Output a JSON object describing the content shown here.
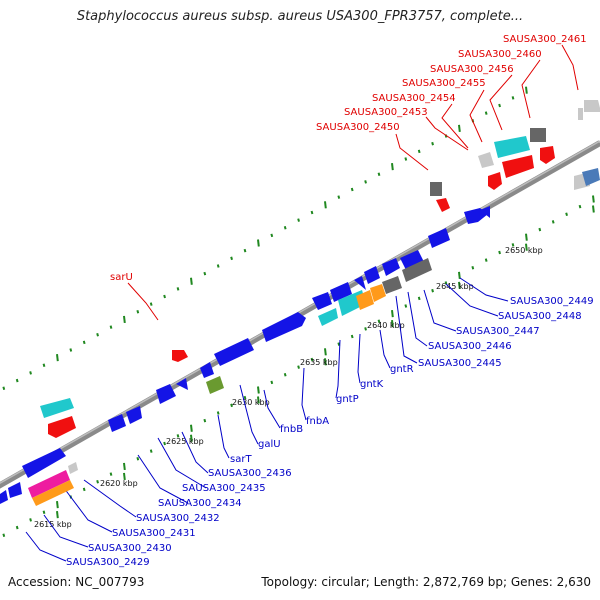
{
  "title": "Staphylococcus aureus subsp. aureus USA300_FPR3757, complete...",
  "footer": {
    "accession": "Accession: NC_007793",
    "summary": "Topology: circular; Length: 2,872,769 bp; Genes: 2,630"
  },
  "colors": {
    "backbone": "#8a8a8a",
    "blue_gene": "#1414e6",
    "red_gene": "#f01010",
    "cyan_gene": "#20c8cc",
    "gray_dark": "#666666",
    "gray_light": "#c8c8c8",
    "orange_gene": "#ff9a1a",
    "magenta_gene": "#ee1ca0",
    "olive_gene": "#6a9a30",
    "tick_green": "#208820",
    "red_label": "#e00000",
    "blue_label": "#0000c8"
  },
  "kbp_ticks": [
    "2615 kbp",
    "2620 kbp",
    "2625 kbp",
    "2630 kbp",
    "2635 kbp",
    "2640 kbp",
    "2645 kbp",
    "2650 kbp"
  ],
  "labels_red": [
    "SAUSA300_2461",
    "SAUSA300_2460",
    "SAUSA300_2456",
    "SAUSA300_2455",
    "SAUSA300_2454",
    "SAUSA300_2453",
    "SAUSA300_2450",
    "sarU"
  ],
  "labels_blue": [
    "SAUSA300_2449",
    "SAUSA300_2448",
    "SAUSA300_2447",
    "SAUSA300_2446",
    "SAUSA300_2445",
    "gntR",
    "gntK",
    "gntP",
    "fnbA",
    "fnbB",
    "galU",
    "sarT",
    "SAUSA300_2436",
    "SAUSA300_2435",
    "SAUSA300_2434",
    "SAUSA300_2432",
    "SAUSA300_2431",
    "SAUSA300_2430",
    "SAUSA300_2429"
  ]
}
